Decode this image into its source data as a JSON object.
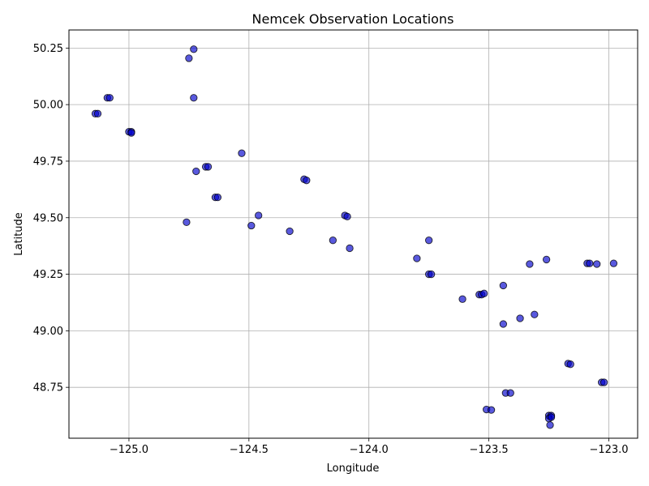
{
  "chart_data": {
    "type": "scatter",
    "title": "Nemcek Observation Locations",
    "xlabel": "Longitude",
    "ylabel": "Latitude",
    "xlim": [
      -125.25,
      -122.88
    ],
    "ylim": [
      48.525,
      50.33
    ],
    "xticks": [
      -125.0,
      -124.5,
      -124.0,
      -123.5,
      -123.0
    ],
    "xtick_labels": [
      "−125.0",
      "−124.5",
      "−124.0",
      "−123.5",
      "−123.0"
    ],
    "yticks": [
      48.75,
      49.0,
      49.25,
      49.5,
      49.75,
      50.0,
      50.25
    ],
    "ytick_labels": [
      "48.75",
      "49.00",
      "49.25",
      "49.50",
      "49.75",
      "50.00",
      "50.25"
    ],
    "grid": true,
    "marker_color": "#0000cc",
    "marker_edge": "#000000",
    "points": [
      {
        "x": -124.73,
        "y": 50.245
      },
      {
        "x": -124.75,
        "y": 50.205
      },
      {
        "x": -124.73,
        "y": 50.03
      },
      {
        "x": -125.09,
        "y": 50.03
      },
      {
        "x": -125.08,
        "y": 50.03
      },
      {
        "x": -125.14,
        "y": 49.96
      },
      {
        "x": -125.13,
        "y": 49.96
      },
      {
        "x": -125.0,
        "y": 49.88
      },
      {
        "x": -124.99,
        "y": 49.88
      },
      {
        "x": -124.99,
        "y": 49.875
      },
      {
        "x": -124.53,
        "y": 49.785
      },
      {
        "x": -124.68,
        "y": 49.725
      },
      {
        "x": -124.67,
        "y": 49.725
      },
      {
        "x": -124.72,
        "y": 49.705
      },
      {
        "x": -124.27,
        "y": 49.67
      },
      {
        "x": -124.26,
        "y": 49.665
      },
      {
        "x": -124.64,
        "y": 49.59
      },
      {
        "x": -124.63,
        "y": 49.59
      },
      {
        "x": -124.46,
        "y": 49.51
      },
      {
        "x": -124.1,
        "y": 49.51
      },
      {
        "x": -124.09,
        "y": 49.505
      },
      {
        "x": -124.76,
        "y": 49.48
      },
      {
        "x": -124.49,
        "y": 49.465
      },
      {
        "x": -124.33,
        "y": 49.44
      },
      {
        "x": -124.15,
        "y": 49.4
      },
      {
        "x": -124.08,
        "y": 49.365
      },
      {
        "x": -123.75,
        "y": 49.4
      },
      {
        "x": -123.8,
        "y": 49.32
      },
      {
        "x": -123.26,
        "y": 49.315
      },
      {
        "x": -123.75,
        "y": 49.25
      },
      {
        "x": -123.74,
        "y": 49.25
      },
      {
        "x": -123.33,
        "y": 49.295
      },
      {
        "x": -123.09,
        "y": 49.298
      },
      {
        "x": -123.08,
        "y": 49.298
      },
      {
        "x": -123.05,
        "y": 49.295
      },
      {
        "x": -122.98,
        "y": 49.298
      },
      {
        "x": -123.44,
        "y": 49.2
      },
      {
        "x": -123.54,
        "y": 49.16
      },
      {
        "x": -123.53,
        "y": 49.16
      },
      {
        "x": -123.52,
        "y": 49.165
      },
      {
        "x": -123.61,
        "y": 49.14
      },
      {
        "x": -123.37,
        "y": 49.055
      },
      {
        "x": -123.31,
        "y": 49.072
      },
      {
        "x": -123.44,
        "y": 49.03
      },
      {
        "x": -123.17,
        "y": 48.855
      },
      {
        "x": -123.16,
        "y": 48.852
      },
      {
        "x": -123.03,
        "y": 48.772
      },
      {
        "x": -123.02,
        "y": 48.772
      },
      {
        "x": -123.43,
        "y": 48.725
      },
      {
        "x": -123.41,
        "y": 48.725
      },
      {
        "x": -123.51,
        "y": 48.652
      },
      {
        "x": -123.49,
        "y": 48.65
      },
      {
        "x": -123.25,
        "y": 48.625
      },
      {
        "x": -123.24,
        "y": 48.625
      },
      {
        "x": -123.25,
        "y": 48.612
      },
      {
        "x": -123.24,
        "y": 48.618
      },
      {
        "x": -123.245,
        "y": 48.583
      }
    ]
  }
}
